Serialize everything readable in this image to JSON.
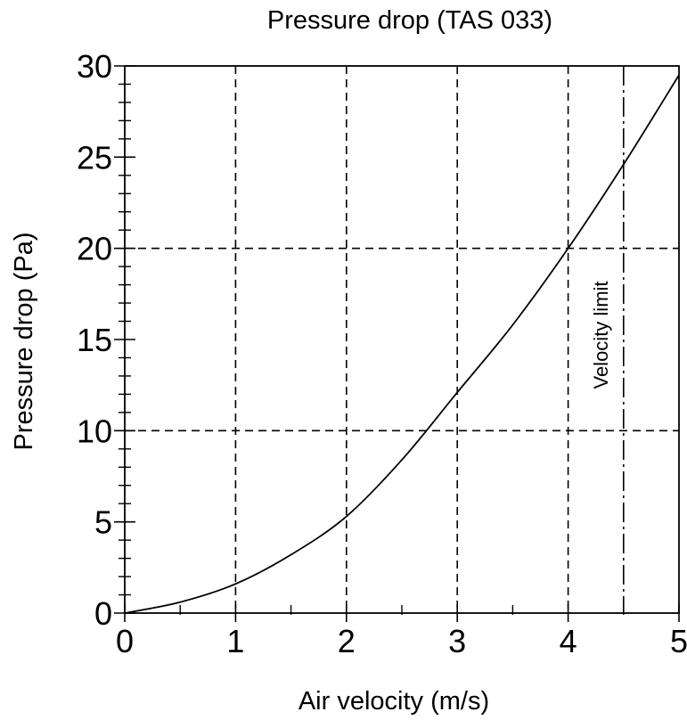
{
  "chart_data": {
    "type": "line",
    "title": "Pressure drop (TAS 033)",
    "xlabel": "Air velocity (m/s)",
    "ylabel": "Pressure drop (Pa)",
    "xlim": [
      0,
      5
    ],
    "ylim": [
      0,
      30
    ],
    "x_ticks": [
      "0",
      "1",
      "2",
      "3",
      "4",
      "5"
    ],
    "y_ticks": [
      "0",
      "5",
      "10",
      "15",
      "20",
      "25",
      "30"
    ],
    "grid": {
      "x_dashed_at": [
        1,
        2,
        3,
        4
      ],
      "y_dashed_at": [
        10,
        20
      ]
    },
    "series": [
      {
        "x": [
          0,
          0.5,
          1,
          1.5,
          2,
          2.5,
          3,
          3.5,
          4,
          4.5,
          5
        ],
        "y": [
          0,
          0.6,
          1.6,
          3.2,
          5.3,
          8.4,
          12.1,
          15.8,
          20.0,
          24.6,
          29.5
        ],
        "color": "#000000"
      }
    ],
    "annotations": [
      {
        "text": "Velocity limit",
        "x": 4.5,
        "style": "dash-dot vertical line"
      }
    ]
  }
}
